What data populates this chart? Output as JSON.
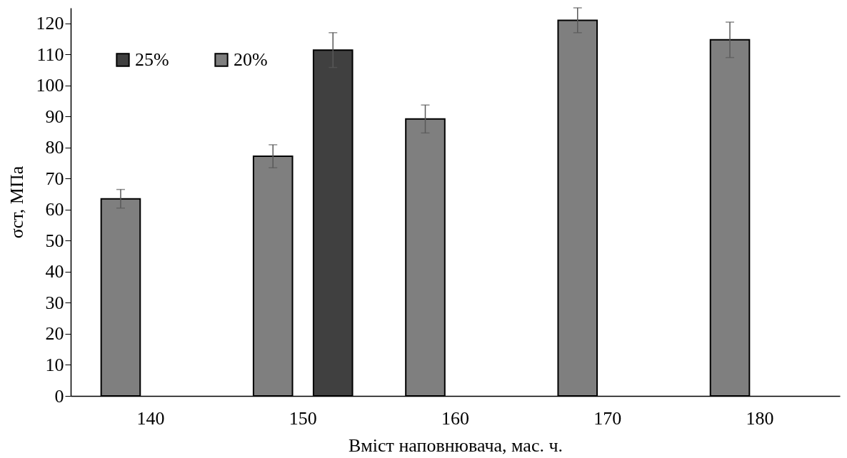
{
  "chart_data": {
    "type": "bar",
    "xlabel": "Вміст наповнювача, мас. ч.",
    "ylabel": "σст, МПа",
    "categories": [
      "140",
      "150",
      "160",
      "170",
      "180"
    ],
    "series": [
      {
        "name": "25%",
        "color": "#404040",
        "values": [
          null,
          111.4,
          null,
          null,
          null
        ],
        "errors": [
          null,
          5.6,
          null,
          null,
          null
        ]
      },
      {
        "name": "20%",
        "color": "#7f7f7f",
        "values": [
          63.5,
          77.2,
          89.2,
          121,
          114.7
        ],
        "errors": [
          3,
          3.7,
          4.5,
          4,
          5.7
        ]
      }
    ],
    "ylim": [
      0,
      125
    ],
    "yticks": [
      0,
      10,
      20,
      30,
      40,
      50,
      60,
      70,
      80,
      90,
      100,
      110,
      120
    ],
    "grid": false,
    "legend": "top left"
  }
}
